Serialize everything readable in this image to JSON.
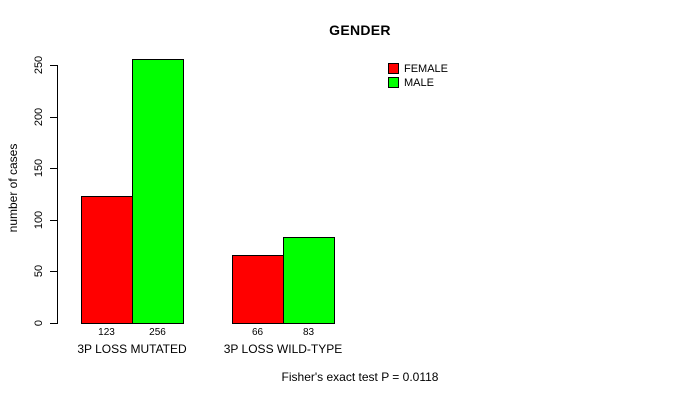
{
  "chart_data": {
    "type": "bar",
    "title": "GENDER",
    "ylabel": "number of cases",
    "xlabel": "",
    "categories": [
      "3P LOSS MUTATED",
      "3P LOSS WILD-TYPE"
    ],
    "series": [
      {
        "name": "FEMALE",
        "color": "#ff0000",
        "values": [
          123,
          66
        ]
      },
      {
        "name": "MALE",
        "color": "#00ff00",
        "values": [
          256,
          83
        ]
      }
    ],
    "yticks": [
      0,
      50,
      100,
      150,
      200,
      250
    ],
    "ylim": [
      0,
      260
    ],
    "grid": false,
    "legend_position": "top-right",
    "bar_value_labels": true,
    "annotation": "Fisher's exact test P = 0.0118"
  }
}
